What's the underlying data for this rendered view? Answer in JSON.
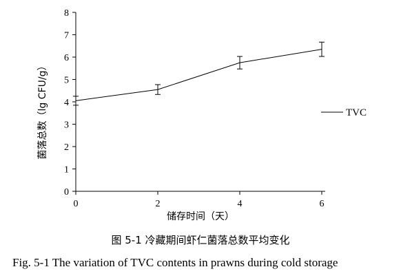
{
  "chart_data": {
    "type": "line",
    "x": [
      0,
      2,
      4,
      6
    ],
    "series": [
      {
        "name": "TVC",
        "values": [
          4.05,
          4.55,
          5.75,
          6.35
        ],
        "errors": [
          0.2,
          0.22,
          0.28,
          0.32
        ]
      }
    ],
    "xlabel": "储存时间（天）",
    "ylabel": "菌落总数（lg CFU/g）",
    "xticks": [
      0,
      2,
      4,
      6
    ],
    "yticks": [
      0,
      1,
      2,
      3,
      4,
      5,
      6,
      7,
      8
    ],
    "xlim": [
      0,
      6
    ],
    "ylim": [
      0,
      8
    ],
    "grid": false,
    "legend_position": "right"
  },
  "captions": {
    "chinese": "图 5-1 冷藏期间虾仁菌落总数平均变化",
    "english": "Fig. 5-1 The variation of TVC contents in prawns during cold storage"
  }
}
